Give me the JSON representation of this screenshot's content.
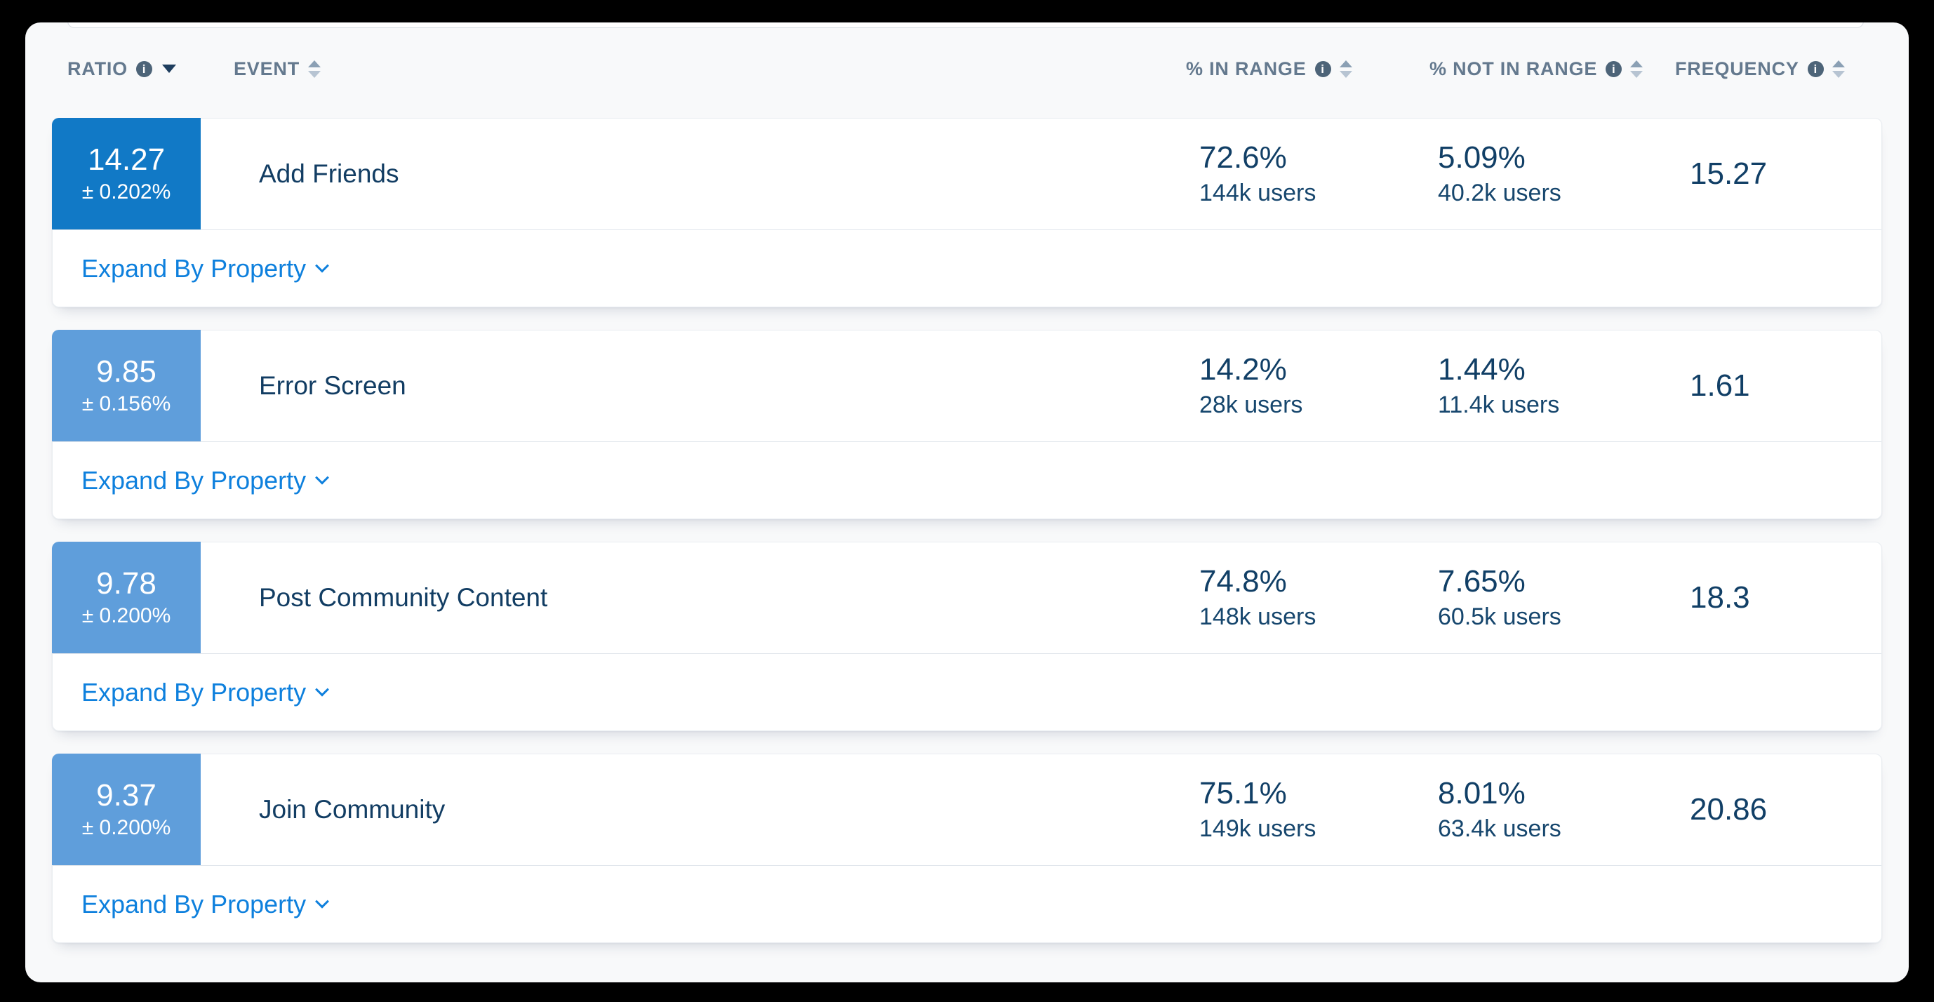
{
  "header": {
    "columns": [
      {
        "label": "RATIO",
        "has_info": true,
        "sort": "desc"
      },
      {
        "label": "EVENT",
        "has_info": false,
        "sort": "none"
      },
      {
        "label": "% IN RANGE",
        "has_info": true,
        "sort": "none"
      },
      {
        "label": "% NOT IN RANGE",
        "has_info": true,
        "sort": "none"
      },
      {
        "label": "FREQUENCY",
        "has_info": true,
        "sort": "none"
      }
    ]
  },
  "rows": [
    {
      "ratio": "14.27",
      "ratio_margin": "± 0.202%",
      "event": "Add Friends",
      "in_range_pct": "72.6%",
      "in_range_users": "144k users",
      "not_in_range_pct": "5.09%",
      "not_in_range_users": "40.2k users",
      "frequency": "15.27",
      "badge_color": "#1179c6",
      "expand_label": "Expand By Property"
    },
    {
      "ratio": "9.85",
      "ratio_margin": "± 0.156%",
      "event": "Error Screen",
      "in_range_pct": "14.2%",
      "in_range_users": "28k users",
      "not_in_range_pct": "1.44%",
      "not_in_range_users": "11.4k users",
      "frequency": "1.61",
      "badge_color": "#5f9edb",
      "expand_label": "Expand By Property"
    },
    {
      "ratio": "9.78",
      "ratio_margin": "± 0.200%",
      "event": "Post Community Content",
      "in_range_pct": "74.8%",
      "in_range_users": "148k users",
      "not_in_range_pct": "7.65%",
      "not_in_range_users": "60.5k users",
      "frequency": "18.3",
      "badge_color": "#5f9edb",
      "expand_label": "Expand By Property"
    },
    {
      "ratio": "9.37",
      "ratio_margin": "± 0.200%",
      "event": "Join Community",
      "in_range_pct": "75.1%",
      "in_range_users": "149k users",
      "not_in_range_pct": "8.01%",
      "not_in_range_users": "63.4k users",
      "frequency": "20.86",
      "badge_color": "#5f9edb",
      "expand_label": "Expand By Property"
    }
  ],
  "icons": {
    "info": "info-icon",
    "sorted_desc": "caret-down-icon",
    "sortable": "sort-arrows-icon",
    "expand": "chevron-down-icon"
  },
  "colors": {
    "frame": "#000000",
    "page_bg": "#f8f9fa",
    "card_bg": "#ffffff",
    "badge_dark_blue": "#1179c6",
    "badge_light_blue": "#5f9edb",
    "link_blue": "#0e80dd",
    "text_navy": "#123d63",
    "header_slate": "#64798e",
    "divider": "#e0e5eb"
  }
}
